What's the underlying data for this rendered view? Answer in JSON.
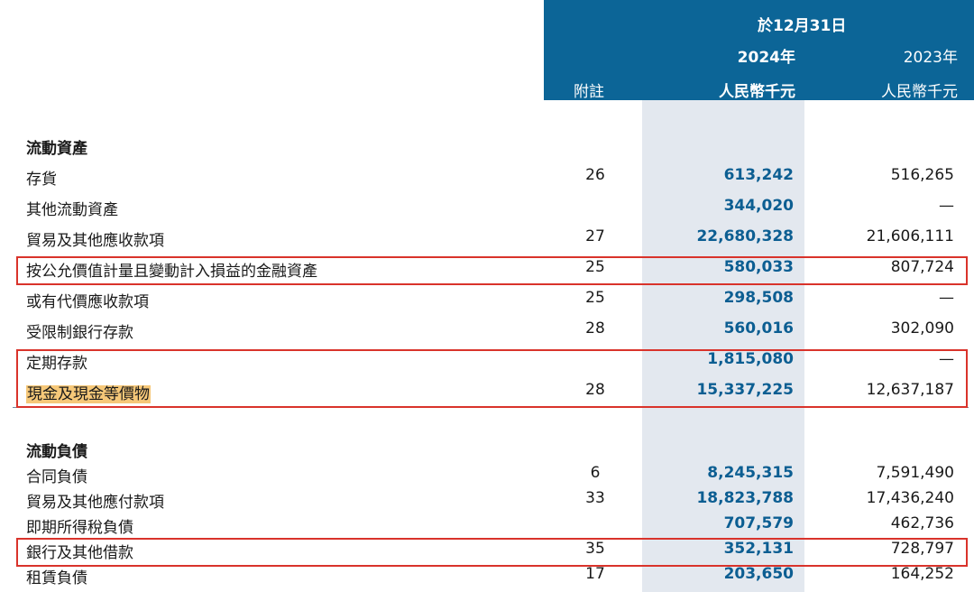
{
  "header": {
    "period": "於12月31日",
    "year_current": "2024年",
    "year_prior": "2023年",
    "note_col": "附註",
    "unit_current": "人民幣千元",
    "unit_prior": "人民幣千元"
  },
  "sections": [
    {
      "title": "流動資產",
      "rows": [
        {
          "label": "存貨",
          "note": "26",
          "v2024": "613,242",
          "v2023": "516,265"
        },
        {
          "label": "其他流動資產",
          "note": "",
          "v2024": "344,020",
          "v2023": "—"
        },
        {
          "label": "貿易及其他應收款項",
          "note": "27",
          "v2024": "22,680,328",
          "v2023": "21,606,111"
        },
        {
          "label": "按公允價值計量且變動計入損益的金融資產",
          "note": "25",
          "v2024": "580,033",
          "v2023": "807,724"
        },
        {
          "label": "或有代價應收款項",
          "note": "25",
          "v2024": "298,508",
          "v2023": "—"
        },
        {
          "label": "受限制銀行存款",
          "note": "28",
          "v2024": "560,016",
          "v2023": "302,090"
        },
        {
          "label": "定期存款",
          "note": "",
          "v2024": "1,815,080",
          "v2023": "—"
        },
        {
          "label": "現金及現金等價物",
          "note": "28",
          "v2024": "15,337,225",
          "v2023": "12,637,187"
        }
      ]
    },
    {
      "title": "流動負債",
      "rows": [
        {
          "label": "合同負債",
          "note": "6",
          "v2024": "8,245,315",
          "v2023": "7,591,490"
        },
        {
          "label": "貿易及其他應付款項",
          "note": "33",
          "v2024": "18,823,788",
          "v2023": "17,436,240"
        },
        {
          "label": "即期所得稅負債",
          "note": "",
          "v2024": "707,579",
          "v2023": "462,736"
        },
        {
          "label": "銀行及其他借款",
          "note": "35",
          "v2024": "352,131",
          "v2023": "728,797"
        },
        {
          "label": "租賃負債",
          "note": "17",
          "v2024": "203,650",
          "v2023": "164,252"
        }
      ]
    }
  ],
  "colors": {
    "header_bg": "#0c6597",
    "current_year_text": "#0c5e92",
    "shade_column": "#e3e8ef",
    "annotation_box": "#d9332b",
    "text_highlight": "#f6c879"
  }
}
